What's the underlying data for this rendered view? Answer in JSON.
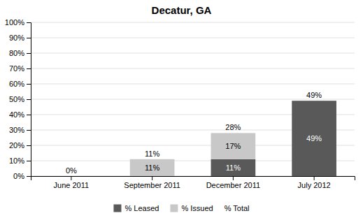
{
  "chart_data": {
    "type": "bar",
    "title": "Decatur, GA",
    "categories": [
      "June 2011",
      "September 2011",
      "December 2011",
      "July 2012"
    ],
    "stacked": true,
    "series": [
      {
        "name": "% Leased",
        "color": "#595959",
        "values": [
          0,
          0,
          11,
          49
        ],
        "value_labels": [
          null,
          null,
          "11%",
          "49%"
        ]
      },
      {
        "name": "% Issued",
        "color": "#c8c8c8",
        "values": [
          0,
          11,
          17,
          0
        ],
        "value_labels": [
          null,
          "11%",
          "17%",
          null
        ]
      }
    ],
    "totals": {
      "name": "% Total",
      "values": [
        0,
        11,
        28,
        49
      ],
      "value_labels": [
        "0%",
        "11%",
        "28%",
        "49%"
      ]
    },
    "ylim": [
      0,
      100
    ],
    "yticks": [
      {
        "value": 0,
        "label": "0%"
      },
      {
        "value": 10,
        "label": "10%"
      },
      {
        "value": 20,
        "label": "20%"
      },
      {
        "value": 30,
        "label": "30%"
      },
      {
        "value": 40,
        "label": "40%"
      },
      {
        "value": 50,
        "label": "50%"
      },
      {
        "value": 60,
        "label": "60%"
      },
      {
        "value": 70,
        "label": "70%"
      },
      {
        "value": 80,
        "label": "80%"
      },
      {
        "value": 90,
        "label": "90%"
      },
      {
        "value": 100,
        "label": "100%"
      }
    ],
    "grid": true,
    "legend": "bottom"
  }
}
